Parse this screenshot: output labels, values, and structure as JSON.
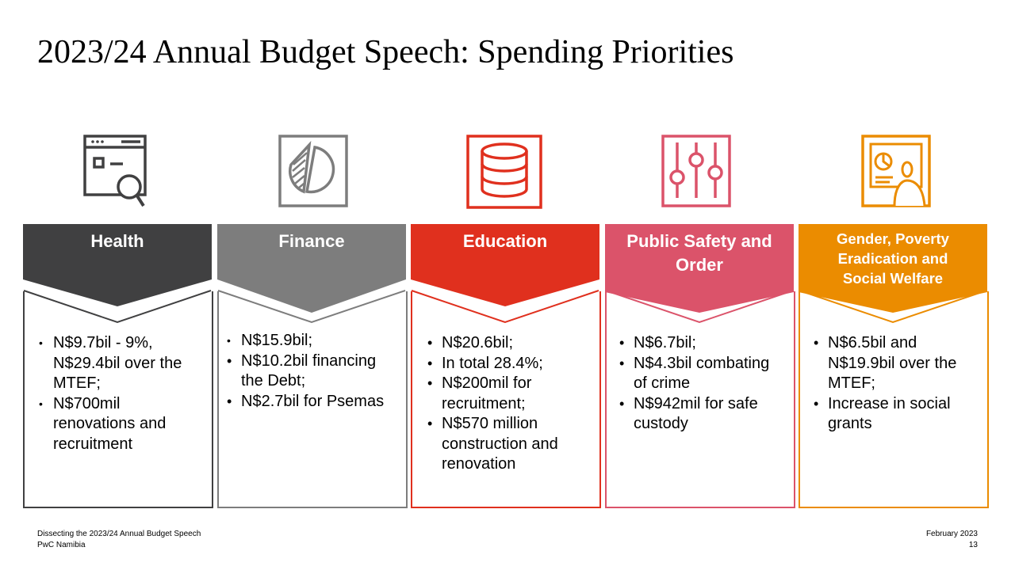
{
  "title": "2023/24 Annual Budget Speech: Spending Priorities",
  "columns": [
    {
      "heading": [
        "Health"
      ],
      "color": "#404041",
      "icon": "browser-search-icon",
      "bullets": [
        "N$9.7bil - 9%, N$29.4bil over the MTEF;",
        "N$700mil renovations and recruitment"
      ]
    },
    {
      "heading": [
        "Finance"
      ],
      "color": "#7d7d7d",
      "icon": "pie-chart-icon",
      "bullets": [
        "N$15.9bil;",
        "N$10.2bil financing the Debt;",
        "N$2.7bil for Psemas"
      ]
    },
    {
      "heading": [
        "Education"
      ],
      "color": "#e0301e",
      "icon": "database-icon",
      "bullets": [
        "N$20.6bil;",
        "In total 28.4%;",
        "N$200mil for recruitment;",
        "N$570 million construction and renovation"
      ]
    },
    {
      "heading": [
        "Public Safety and",
        "Order"
      ],
      "color": "#db536a",
      "icon": "sliders-icon",
      "bullets": [
        "N$6.7bil;",
        "N$4.3bil combating of crime",
        "N$942mil for safe custody"
      ]
    },
    {
      "heading": [
        "Gender, Poverty",
        "Eradication and",
        "Social Welfare"
      ],
      "color": "#eb8c00",
      "icon": "presentation-icon",
      "bullets": [
        "N$6.5bil and N$19.9bil over the MTEF;",
        "Increase in social grants"
      ]
    }
  ],
  "footer": {
    "left_line1": "Dissecting the 2023/24 Annual Budget Speech",
    "left_line2": "PwC Namibia",
    "right_line1": "February 2023",
    "right_line2": "13"
  }
}
